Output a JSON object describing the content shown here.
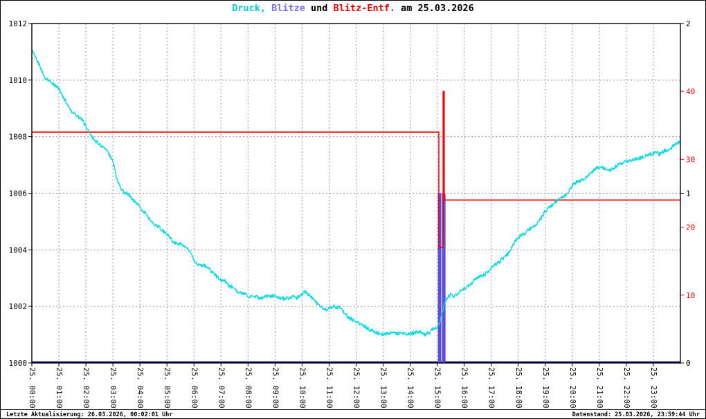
{
  "title": {
    "segments": [
      {
        "text": "Druck,",
        "color": "#00cede"
      },
      {
        "text": " ",
        "color": "#000000"
      },
      {
        "text": "Blitze",
        "color": "#7a70ff"
      },
      {
        "text": " und ",
        "color": "#000000"
      },
      {
        "text": "Blitz-Entf.",
        "color": "#ff0000"
      },
      {
        "text": " am 25.03.2026",
        "color": "#000000"
      }
    ]
  },
  "footer": {
    "left": "Letzte Aktualisierung: 26.03.2026, 00:02:01 Uhr",
    "right": "Datenstand: 25.03.2026, 23:59:44 Uhr"
  },
  "chart_data": {
    "type": "line",
    "title": "Druck, Blitze und Blitz-Entf. am 25.03.2026",
    "grid": {
      "dashed": true,
      "color": "#969696"
    },
    "x_labels": [
      "25. 00:00",
      "25. 01:00",
      "25. 02:00",
      "25. 03:00",
      "25. 04:00",
      "25. 05:00",
      "25. 06:00",
      "25. 07:00",
      "25. 08:00",
      "25. 09:00",
      "25. 10:00",
      "25. 11:00",
      "25. 12:00",
      "25. 13:00",
      "25. 14:00",
      "25. 15:00",
      "25. 16:00",
      "25. 17:00",
      "25. 18:00",
      "25. 19:00",
      "25. 20:00",
      "25. 21:00",
      "25. 22:00",
      "25. 23:00"
    ],
    "x_range_hours": [
      0,
      24
    ],
    "axes": {
      "pressure": {
        "side": "left",
        "min": 1000,
        "max": 1012,
        "tick_step": 2,
        "color": "#000000",
        "unit": "hPa"
      },
      "blitze": {
        "side": "right",
        "min": 0,
        "max": 2,
        "ticks": [
          0,
          1,
          2
        ],
        "color": "#000000",
        "unit": "count"
      },
      "entfernung": {
        "side": "right",
        "min": 0,
        "max": 50,
        "ticks": [
          10,
          20,
          30,
          40
        ],
        "color": "#ff0000",
        "unit": "km"
      }
    },
    "series": [
      {
        "name": "Druck",
        "type": "line",
        "axis": "pressure",
        "color": "#00dbe8",
        "anchors_t_hpa": [
          [
            0,
            1011.05
          ],
          [
            0.15,
            1010.8
          ],
          [
            0.35,
            1010.45
          ],
          [
            0.5,
            1010.1
          ],
          [
            0.7,
            1009.95
          ],
          [
            0.9,
            1009.8
          ],
          [
            1.0,
            1009.7
          ],
          [
            1.2,
            1009.35
          ],
          [
            1.45,
            1009.0
          ],
          [
            1.7,
            1008.75
          ],
          [
            1.9,
            1008.5
          ],
          [
            2.1,
            1008.2
          ],
          [
            2.3,
            1007.95
          ],
          [
            2.5,
            1007.8
          ],
          [
            2.7,
            1007.6
          ],
          [
            2.9,
            1007.3
          ],
          [
            3.0,
            1007.1
          ],
          [
            3.15,
            1006.5
          ],
          [
            3.3,
            1006.2
          ],
          [
            3.5,
            1006.05
          ],
          [
            3.7,
            1005.85
          ],
          [
            3.85,
            1005.65
          ],
          [
            4.0,
            1005.5
          ],
          [
            4.25,
            1005.2
          ],
          [
            4.5,
            1004.95
          ],
          [
            4.75,
            1004.75
          ],
          [
            5.0,
            1004.5
          ],
          [
            5.2,
            1004.25
          ],
          [
            5.5,
            1004.15
          ],
          [
            5.75,
            1004.0
          ],
          [
            5.95,
            1003.7
          ],
          [
            6.15,
            1003.45
          ],
          [
            6.4,
            1003.35
          ],
          [
            6.7,
            1003.2
          ],
          [
            7.0,
            1003.0
          ],
          [
            7.3,
            1002.8
          ],
          [
            7.55,
            1002.6
          ],
          [
            7.8,
            1002.5
          ],
          [
            8.0,
            1002.45
          ],
          [
            8.3,
            1002.35
          ],
          [
            8.7,
            1002.3
          ],
          [
            9.0,
            1002.3
          ],
          [
            9.35,
            1002.2
          ],
          [
            9.7,
            1002.25
          ],
          [
            10.0,
            1002.4
          ],
          [
            10.15,
            1002.5
          ],
          [
            10.4,
            1002.3
          ],
          [
            10.65,
            1002.05
          ],
          [
            10.9,
            1001.95
          ],
          [
            11.2,
            1002.0
          ],
          [
            11.45,
            1001.9
          ],
          [
            11.7,
            1001.7
          ],
          [
            11.95,
            1001.55
          ],
          [
            12.2,
            1001.35
          ],
          [
            12.5,
            1001.15
          ],
          [
            12.8,
            1001.05
          ],
          [
            13.05,
            1001.0
          ],
          [
            13.35,
            1001.1
          ],
          [
            13.65,
            1001.1
          ],
          [
            13.95,
            1001.1
          ],
          [
            14.25,
            1001.15
          ],
          [
            14.55,
            1001.05
          ],
          [
            14.8,
            1001.2
          ],
          [
            15.0,
            1001.25
          ],
          [
            15.12,
            1001.45
          ],
          [
            15.28,
            1002.1
          ],
          [
            15.45,
            1002.35
          ],
          [
            15.62,
            1002.3
          ],
          [
            15.85,
            1002.5
          ],
          [
            16.0,
            1002.7
          ],
          [
            16.35,
            1002.95
          ],
          [
            16.7,
            1003.15
          ],
          [
            17.0,
            1003.4
          ],
          [
            17.3,
            1003.65
          ],
          [
            17.6,
            1003.9
          ],
          [
            17.9,
            1004.25
          ],
          [
            18.1,
            1004.45
          ],
          [
            18.35,
            1004.7
          ],
          [
            18.7,
            1005.0
          ],
          [
            19.0,
            1005.3
          ],
          [
            19.35,
            1005.6
          ],
          [
            19.7,
            1005.9
          ],
          [
            20.0,
            1006.2
          ],
          [
            20.3,
            1006.45
          ],
          [
            20.6,
            1006.7
          ],
          [
            20.9,
            1006.9
          ],
          [
            21.1,
            1007.0
          ],
          [
            21.35,
            1006.85
          ],
          [
            21.6,
            1007.0
          ],
          [
            21.9,
            1007.1
          ],
          [
            22.2,
            1007.15
          ],
          [
            22.5,
            1007.25
          ],
          [
            22.8,
            1007.35
          ],
          [
            23.1,
            1007.45
          ],
          [
            23.4,
            1007.5
          ],
          [
            23.7,
            1007.65
          ],
          [
            24.0,
            1007.8
          ]
        ]
      },
      {
        "name": "Blitz-Entf.",
        "type": "step",
        "axis": "entfernung",
        "color": "#ff0000",
        "points_t_km": [
          [
            0,
            34
          ],
          [
            15.06,
            34
          ],
          [
            15.06,
            17
          ],
          [
            15.22,
            17
          ],
          [
            15.22,
            40
          ],
          [
            15.26,
            40
          ],
          [
            15.26,
            24
          ],
          [
            24,
            24
          ]
        ]
      },
      {
        "name": "Blitze",
        "type": "bars",
        "axis": "blitze",
        "color": "#5b51d8",
        "baseline_color": "#000090",
        "bars_t_count": [
          [
            15.09,
            1
          ],
          [
            15.245,
            1
          ]
        ]
      }
    ]
  }
}
